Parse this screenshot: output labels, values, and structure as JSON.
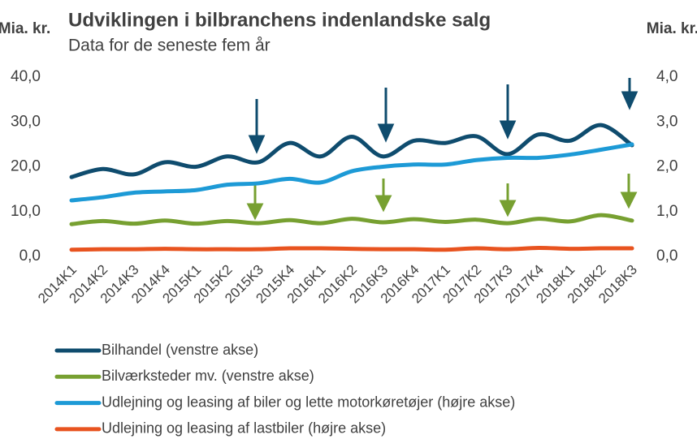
{
  "chart_data": {
    "type": "line",
    "title": "Udviklingen i bilbranchens indenlandske salg",
    "subtitle": "Data for de seneste fem år",
    "y_label": "Mia. kr.",
    "y2_label": "Mia. kr.",
    "categories": [
      "2014K1",
      "2014K2",
      "2014K3",
      "2014K4",
      "2015K1",
      "2015K2",
      "2015K3",
      "2015K4",
      "2016K1",
      "2016K2",
      "2016K3",
      "2016K4",
      "2017K1",
      "2017K2",
      "2017K3",
      "2017K4",
      "2018K1",
      "2018K2",
      "2018K3"
    ],
    "series": [
      {
        "name": "Bilhandel (venstre akse)",
        "color": "#0f4c6e",
        "values": [
          17.7,
          19.5,
          18.3,
          21,
          20,
          22.3,
          21,
          25.3,
          22.3,
          26.7,
          22.3,
          25.8,
          25.3,
          26.8,
          22.8,
          27.2,
          25.8,
          29.3,
          24.8
        ]
      },
      {
        "name": "Bilværksteder mv. (venstre akse)",
        "color": "#77a031",
        "values": [
          7.2,
          7.9,
          7.3,
          8.0,
          7.3,
          7.9,
          7.4,
          8.1,
          7.4,
          8.4,
          7.6,
          8.3,
          7.7,
          8.2,
          7.4,
          8.4,
          7.8,
          9.2,
          8.0
        ]
      },
      {
        "name": "Udlejning og leasing af biler og lette motorkøretøjer (højre akse)",
        "color": "#1d9ad6",
        "axis": "y2",
        "values": [
          1.25,
          1.32,
          1.42,
          1.45,
          1.48,
          1.6,
          1.63,
          1.73,
          1.65,
          1.9,
          2.0,
          2.05,
          2.05,
          2.15,
          2.2,
          2.2,
          2.27,
          2.38,
          2.5
        ]
      },
      {
        "name": "Udlejning og leasing af lastbiler (højre akse)",
        "color": "#e8531f",
        "axis": "y2",
        "values": [
          0.15,
          0.16,
          0.16,
          0.17,
          0.16,
          0.16,
          0.16,
          0.18,
          0.18,
          0.17,
          0.16,
          0.16,
          0.15,
          0.18,
          0.16,
          0.19,
          0.17,
          0.18,
          0.18
        ]
      }
    ],
    "ylim": [
      0,
      40
    ],
    "yticks": [
      {
        "value": 0,
        "label": "0,0"
      },
      {
        "value": 10,
        "label": "10,0"
      },
      {
        "value": 20,
        "label": "20,0"
      },
      {
        "value": 30,
        "label": "30,0"
      },
      {
        "value": 40,
        "label": "40,0"
      }
    ],
    "y2lim": [
      0,
      4
    ],
    "y2ticks": [
      {
        "value": 0,
        "label": "0,0"
      },
      {
        "value": 1,
        "label": "1,0"
      },
      {
        "value": 2,
        "label": "2,0"
      },
      {
        "value": 3,
        "label": "3,0"
      },
      {
        "value": 4,
        "label": "4,0"
      }
    ],
    "grid": false,
    "legend": "bottom"
  }
}
